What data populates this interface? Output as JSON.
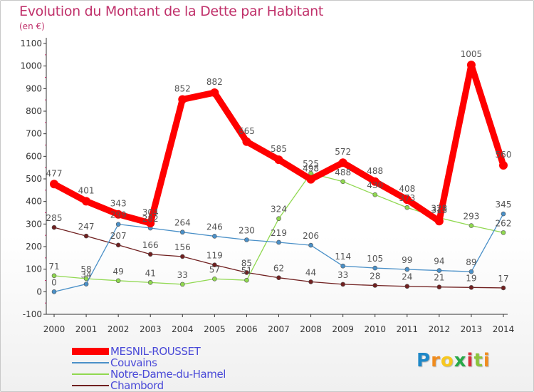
{
  "header": {
    "title": "Evolution du Montant de la Dette par Habitant",
    "unit": "(en €)"
  },
  "chart_data": {
    "type": "line",
    "title": "Evolution du Montant de la Dette par Habitant",
    "ylabel": "(en €)",
    "xlabel": "",
    "x": [
      "2000",
      "2001",
      "2002",
      "2003",
      "2004",
      "2005",
      "2006",
      "2007",
      "2008",
      "2009",
      "2010",
      "2011",
      "2012",
      "2013",
      "2014"
    ],
    "ylim": [
      -100,
      1100
    ],
    "yticks": [
      -100,
      0,
      100,
      200,
      300,
      400,
      500,
      600,
      700,
      800,
      900,
      1000,
      1100
    ],
    "grid": false,
    "legend_position": "bottom-left",
    "series": [
      {
        "name": "MESNIL-ROUSSET",
        "color": "#ff0000",
        "values": [
          477,
          401,
          343,
          304,
          852,
          882,
          665,
          585,
          498,
          572,
          488,
          408,
          313,
          1005,
          560
        ],
        "labels": [
          "477",
          "401",
          "343",
          "304",
          "852",
          "882",
          "665",
          "585",
          "498",
          "572",
          "488",
          "408",
          "313",
          "1005",
          "560"
        ]
      },
      {
        "name": "Couvains",
        "color": "#4a90c8",
        "values": [
          0,
          34,
          299,
          282,
          264,
          246,
          230,
          219,
          206,
          114,
          105,
          99,
          94,
          89,
          345
        ],
        "labels": [
          "0",
          "34",
          "299",
          "282",
          "264",
          "246",
          "230",
          "219",
          "206",
          "114",
          "105",
          "99",
          "94",
          "89",
          "345"
        ]
      },
      {
        "name": "Notre-Dame-du-Hamel",
        "color": "#90d850",
        "values": [
          71,
          58,
          49,
          41,
          33,
          57,
          51,
          324,
          525,
          488,
          430,
          373,
          328,
          293,
          262
        ],
        "labels": [
          "71",
          "58",
          "49",
          "41",
          "33",
          "57",
          "51",
          "324",
          "525",
          "488",
          "430",
          "373",
          "328",
          "293",
          "262"
        ]
      },
      {
        "name": "Chambord",
        "color": "#702020",
        "values": [
          285,
          247,
          207,
          166,
          156,
          119,
          85,
          62,
          44,
          33,
          28,
          24,
          21,
          19,
          17
        ],
        "labels": [
          "285",
          "247",
          "207",
          "166",
          "156",
          "119",
          "85",
          "62",
          "44",
          "33",
          "28",
          "24",
          "21",
          "19",
          "17"
        ]
      }
    ]
  },
  "legend": {
    "items": [
      {
        "label": "MESNIL-ROUSSET",
        "color": "#ff0000",
        "text_color": "#4a4ad8"
      },
      {
        "label": "Couvains",
        "color": "#4a90c8",
        "text_color": "#4a4ad8"
      },
      {
        "label": "Notre-Dame-du-Hamel",
        "color": "#90d850",
        "text_color": "#4a4ad8"
      },
      {
        "label": "Chambord",
        "color": "#702020",
        "text_color": "#4a4ad8"
      }
    ]
  },
  "logo": {
    "letters": [
      "P",
      "r",
      "o",
      "x",
      "i",
      "t",
      "i"
    ],
    "colors": [
      "#1e88c8",
      "#f08c1e",
      "#f8c81e",
      "#28a848",
      "#d8303c",
      "#8cc43c",
      "#f08c1e"
    ]
  }
}
